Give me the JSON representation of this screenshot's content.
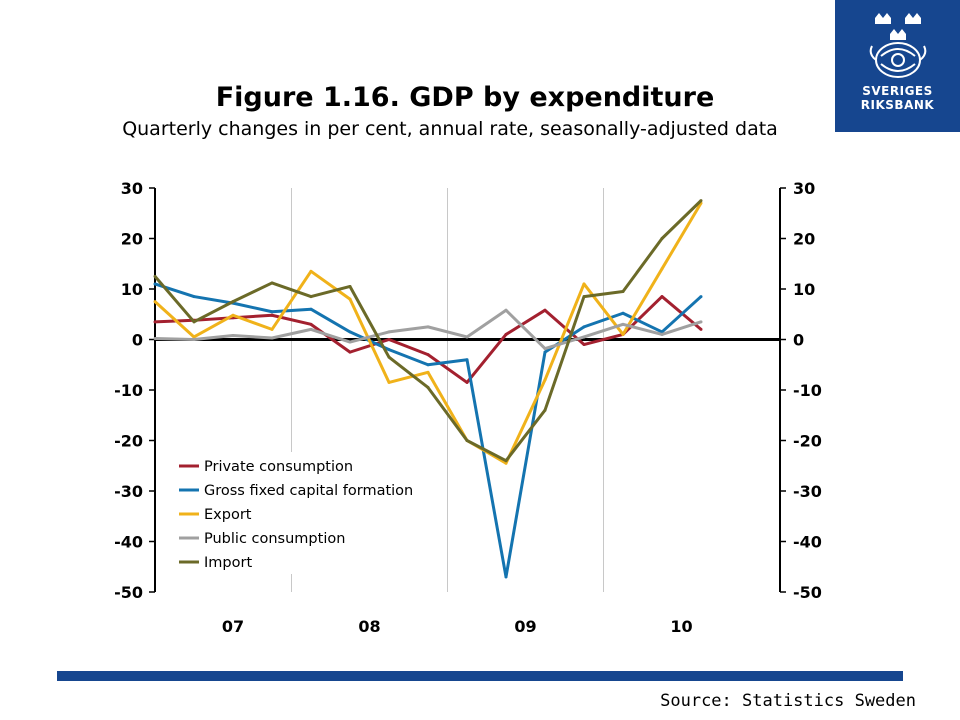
{
  "logo": {
    "line1": "SVERIGES",
    "line2": "RIKSBANK",
    "icon": "crown-seal-icon"
  },
  "title": "Figure 1.16. GDP by expenditure",
  "subtitle": "Quarterly changes in per cent, annual rate, seasonally-adjusted data",
  "source": "Source: Statistics Sweden",
  "chart_data": {
    "type": "line",
    "title": "Figure 1.16. GDP by expenditure",
    "subtitle": "Quarterly changes in per cent, annual rate, seasonally-adjusted data",
    "x_labels": [
      "07",
      "08",
      "09",
      "10"
    ],
    "x": [
      "2006Q4",
      "2007Q1",
      "2007Q2",
      "2007Q3",
      "2007Q4",
      "2008Q1",
      "2008Q2",
      "2008Q3",
      "2008Q4",
      "2009Q1",
      "2009Q2",
      "2009Q3",
      "2009Q4",
      "2010Q1",
      "2010Q2"
    ],
    "ylim": [
      -50,
      30
    ],
    "yticks": [
      30,
      20,
      10,
      0,
      -10,
      -20,
      -30,
      -40,
      -50
    ],
    "grid": {
      "vertical": true,
      "horizontal": false
    },
    "legend_position": "bottom-left",
    "series": [
      {
        "name": "Private consumption",
        "color": "#a3202f",
        "values": [
          3.5,
          3.8,
          4.3,
          4.8,
          3.0,
          -2.5,
          0.0,
          -3.0,
          -8.5,
          1.0,
          5.8,
          -1.0,
          1.0,
          8.5,
          2.0
        ]
      },
      {
        "name": "Gross fixed capital formation",
        "color": "#1474b0",
        "values": [
          11.0,
          8.5,
          7.2,
          5.5,
          6.0,
          1.5,
          -2.0,
          -5.0,
          -4.0,
          -47.0,
          -2.5,
          2.5,
          5.2,
          1.5,
          8.5
        ]
      },
      {
        "name": "Export",
        "color": "#f0b21a",
        "values": [
          7.5,
          0.5,
          4.8,
          2.0,
          13.5,
          8.0,
          -8.5,
          -6.5,
          -20.0,
          -24.5,
          -8.0,
          11.0,
          1.0,
          14.0,
          27.0
        ]
      },
      {
        "name": "Public consumption",
        "color": "#a0a0a0",
        "values": [
          0.2,
          0.0,
          0.8,
          0.3,
          2.0,
          -0.5,
          1.5,
          2.5,
          0.5,
          5.8,
          -1.8,
          0.5,
          3.0,
          1.0,
          3.5
        ]
      },
      {
        "name": "Import",
        "color": "#6b6a28",
        "values": [
          12.5,
          3.5,
          7.5,
          11.2,
          8.5,
          10.5,
          -3.5,
          -9.5,
          -20.0,
          -24.0,
          -14.0,
          8.5,
          9.5,
          20.0,
          27.5
        ]
      }
    ]
  }
}
